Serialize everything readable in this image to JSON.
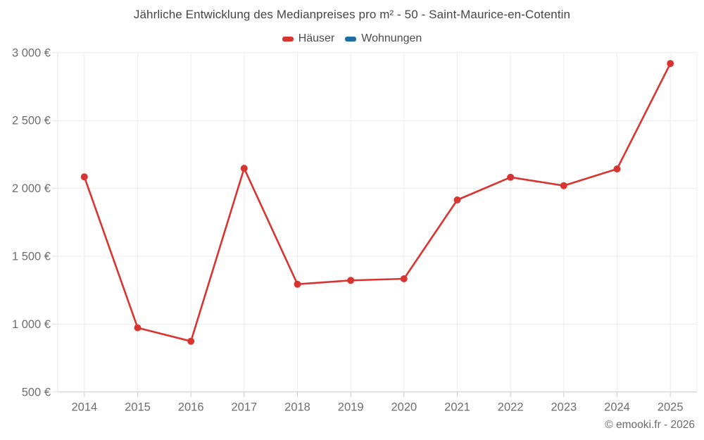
{
  "title": "Jährliche Entwicklung des Medianpreises pro m² - 50 - Saint-Maurice-en-Cotentin",
  "copyright": "© emooki.fr - 2026",
  "legend": [
    {
      "label": "Häuser",
      "color": "#d83430"
    },
    {
      "label": "Wohnungen",
      "color": "#1f6fa5"
    }
  ],
  "colors": {
    "grid": "#ececec",
    "axis_line": "#c9c9c9",
    "y_axis_line": "#e3e3e3",
    "axis_text": "#6e6e6e",
    "title_text": "#454545",
    "copyright_text": "#6b6b6b"
  },
  "chart_data": {
    "type": "line",
    "title": "Jährliche Entwicklung des Medianpreises pro m² - 50 - Saint-Maurice-en-Cotentin",
    "categories": [
      "2014",
      "2015",
      "2016",
      "2017",
      "2018",
      "2019",
      "2020",
      "2021",
      "2022",
      "2023",
      "2024",
      "2025"
    ],
    "series": [
      {
        "name": "Häuser",
        "color": "#d83430",
        "values": [
          2085,
          973,
          874,
          2148,
          1294,
          1322,
          1334,
          1915,
          2082,
          2020,
          2143,
          2920
        ]
      },
      {
        "name": "Wohnungen",
        "color": "#1f6fa5",
        "values": []
      }
    ],
    "xlabel": "",
    "ylabel": "",
    "ylim": [
      500,
      3000
    ],
    "ytick_step": 500,
    "ytick_labels": [
      "500 €",
      "1 000 €",
      "1 500 €",
      "2 000 €",
      "2 500 €",
      "3 000 €"
    ],
    "grid": true,
    "legend_position": "top",
    "marker_radius": 5,
    "line_width": 2.6
  }
}
